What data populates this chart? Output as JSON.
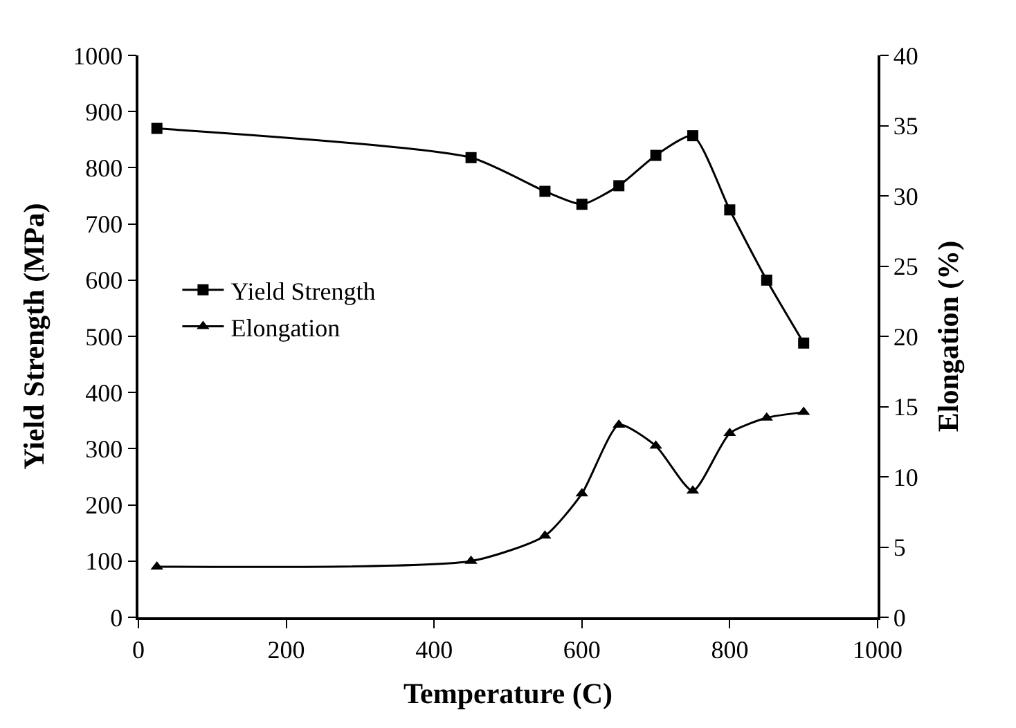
{
  "chart_data": {
    "type": "line",
    "xlabel": "Temperature (C)",
    "ylabel": "Yield Strength (MPa)",
    "y2label": "Elongation (%)",
    "x": [
      25,
      450,
      550,
      600,
      650,
      700,
      750,
      800,
      850,
      900
    ],
    "series": [
      {
        "name": "Yield Strength",
        "color": "#000000",
        "marker": "square",
        "values": [
          870,
          818,
          758,
          735,
          768,
          822,
          857,
          725,
          600,
          488
        ]
      },
      {
        "name": "Elongation",
        "color": "#000000",
        "marker": "triangle",
        "axis": "y2",
        "values": [
          3.6,
          4.0,
          5.8,
          8.8,
          13.7,
          12.2,
          9.0,
          13.1,
          14.2,
          14.6
        ]
      }
    ],
    "xlim": [
      0,
      1000
    ],
    "xticks": [
      0,
      200,
      400,
      600,
      800,
      1000
    ],
    "ylim": [
      0,
      1000
    ],
    "yticks": [
      0,
      100,
      200,
      300,
      400,
      500,
      600,
      700,
      800,
      900,
      1000
    ],
    "y2lim": [
      0,
      40
    ],
    "y2ticks": [
      0,
      5,
      10,
      15,
      20,
      25,
      30,
      35,
      40
    ],
    "legend": "left",
    "line_style": "solid"
  }
}
